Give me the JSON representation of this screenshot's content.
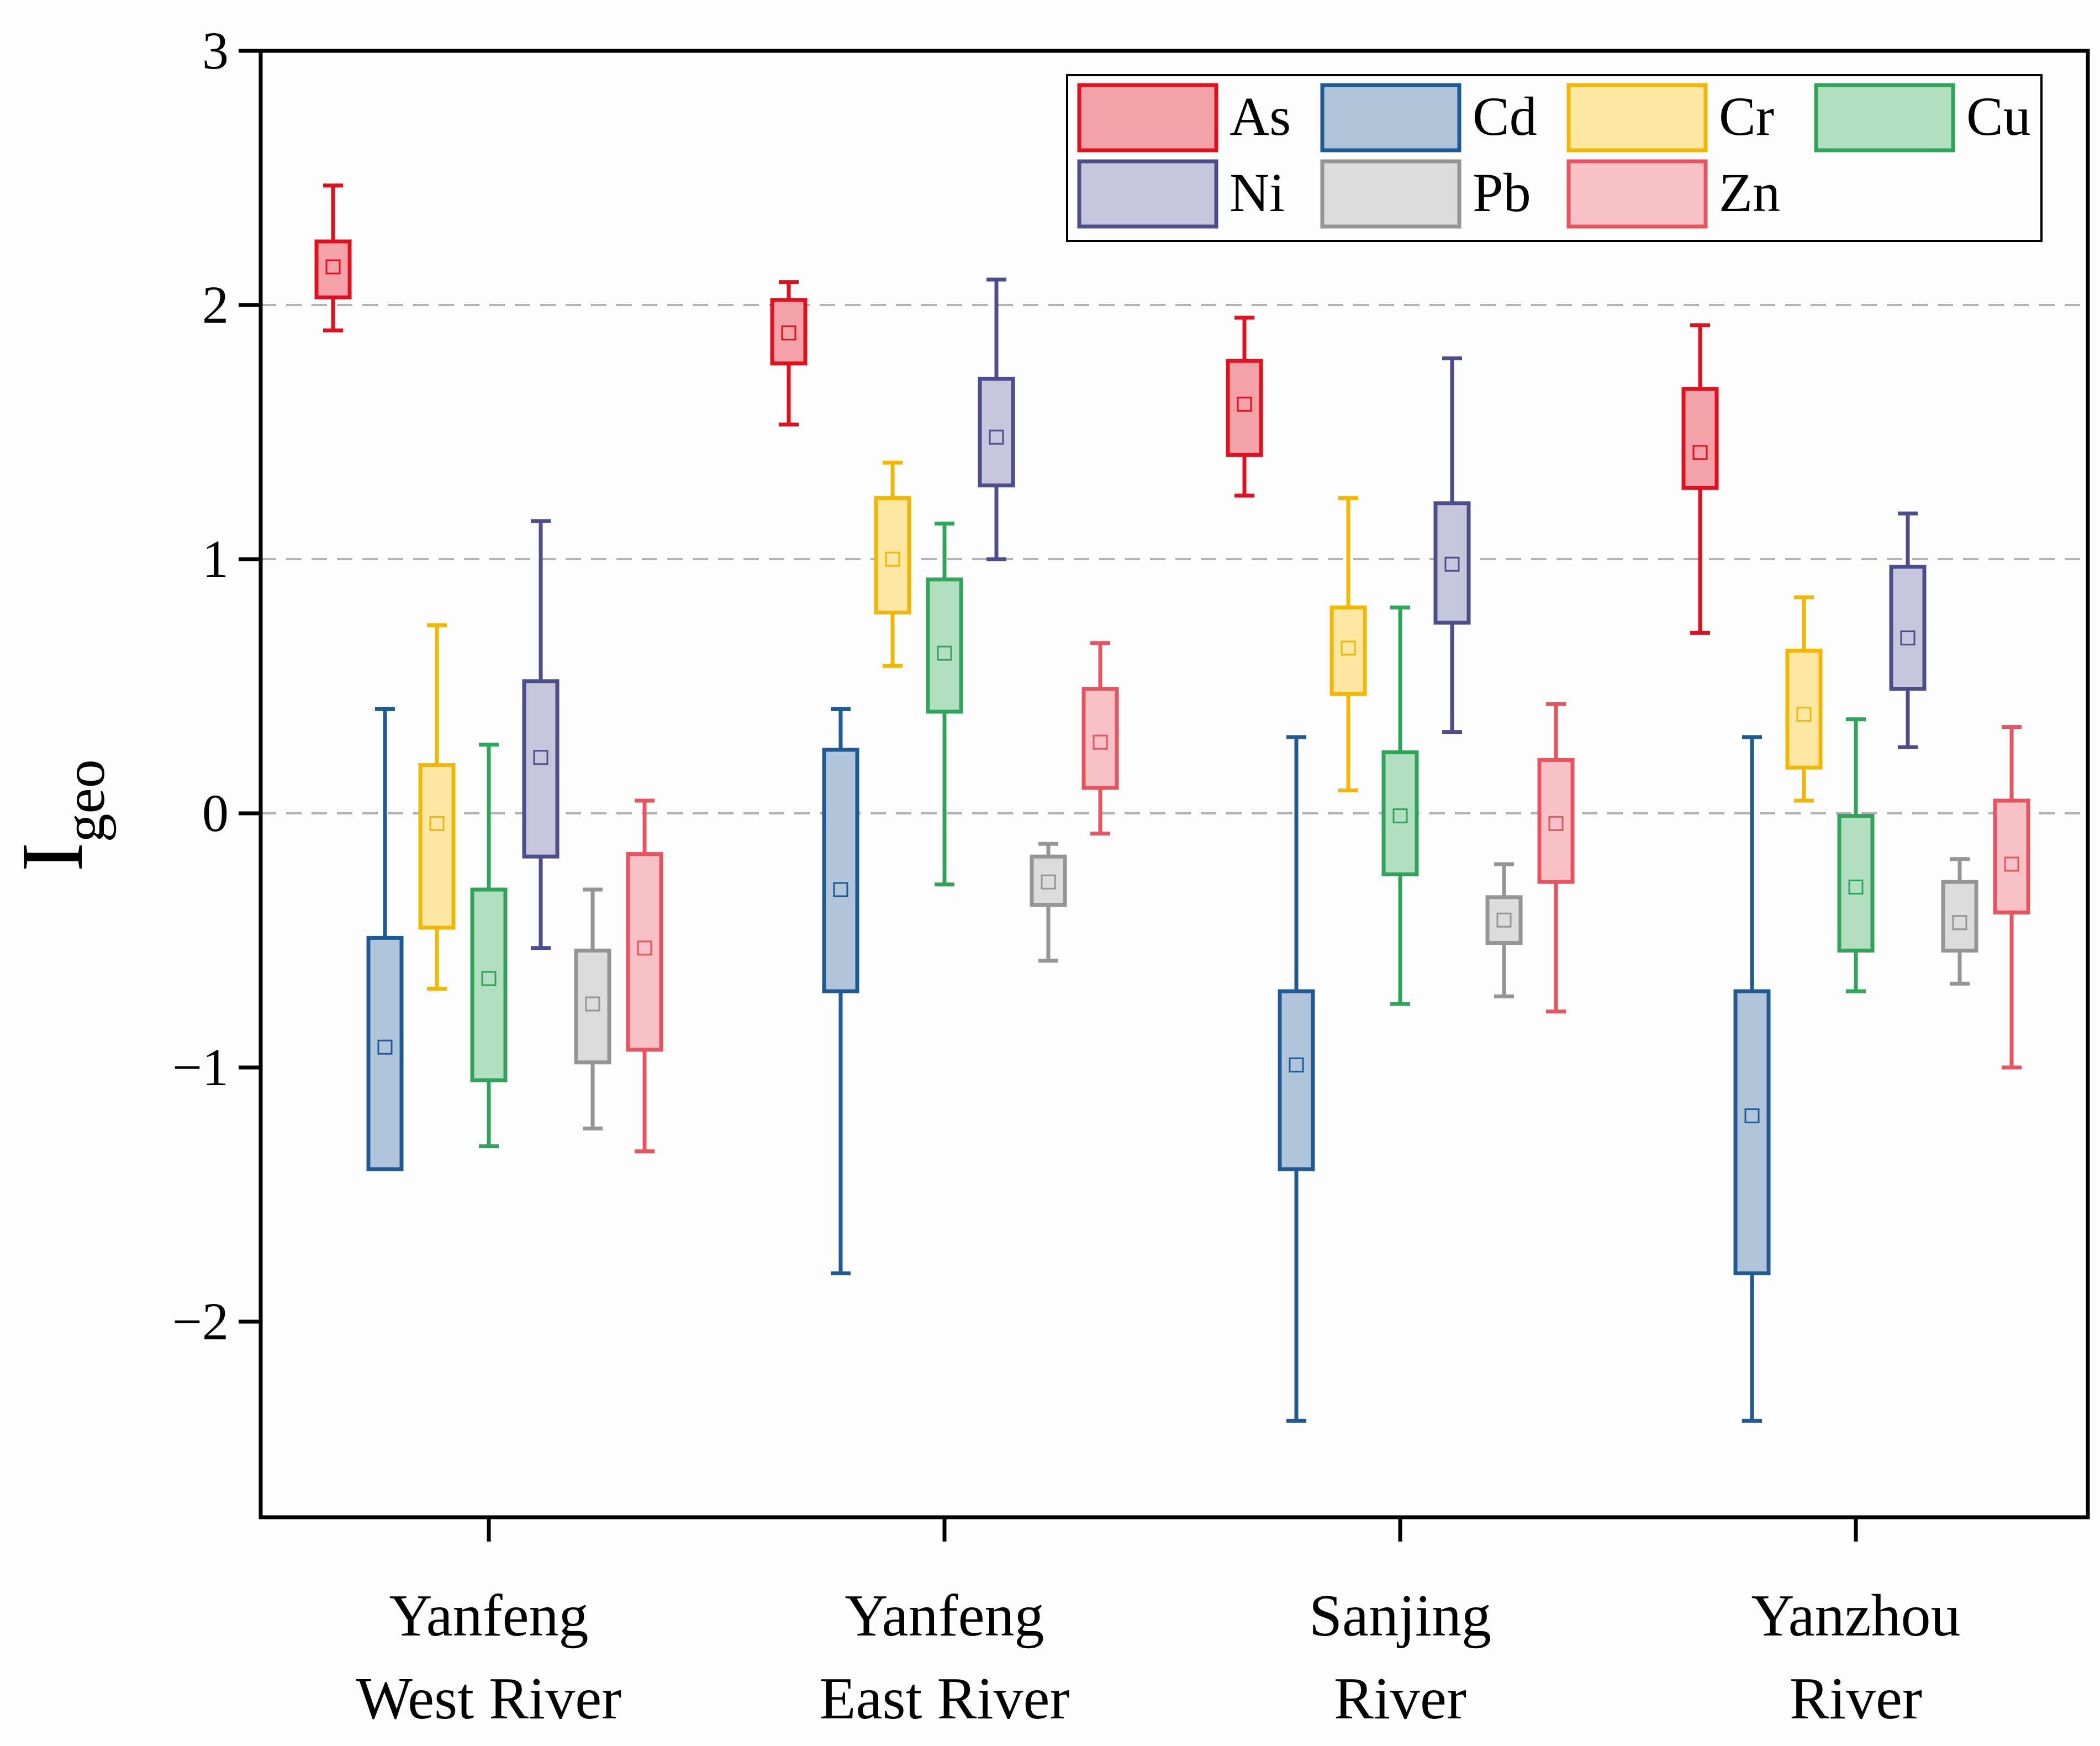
{
  "chart_data": {
    "type": "box",
    "ylabel": "I",
    "ylabel_sub": "geo",
    "ylim": [
      -2.75,
      3
    ],
    "yticks": [
      3,
      2,
      1,
      0,
      -1,
      -2
    ],
    "ytick_labels": [
      "3",
      "2",
      "1",
      "0",
      "−1",
      "−2"
    ],
    "gridlines": [
      2,
      1,
      0
    ],
    "categories": [
      {
        "lines": [
          "Yanfeng",
          "West River"
        ]
      },
      {
        "lines": [
          "Yanfeng",
          "East River"
        ]
      },
      {
        "lines": [
          "Sanjing",
          "River"
        ]
      },
      {
        "lines": [
          "Yanzhou",
          "River"
        ]
      }
    ],
    "legend_position": "top-right",
    "series": [
      {
        "name": "As",
        "stroke": "#e0101e",
        "fill": "#f3a3a7",
        "boxes": [
          {
            "min": 1.9,
            "q1": 2.03,
            "mean": 2.15,
            "q3": 2.25,
            "max": 2.47
          },
          {
            "min": 1.53,
            "q1": 1.77,
            "mean": 1.89,
            "q3": 2.02,
            "max": 2.09
          },
          {
            "min": 1.25,
            "q1": 1.41,
            "mean": 1.61,
            "q3": 1.78,
            "max": 1.95
          },
          {
            "min": 0.71,
            "q1": 1.28,
            "mean": 1.42,
            "q3": 1.67,
            "max": 1.92
          }
        ]
      },
      {
        "name": "Cd",
        "stroke": "#1f5a94",
        "fill": "#b0c4da",
        "boxes": [
          {
            "min": -1.4,
            "q1": -1.4,
            "mean": -0.92,
            "q3": -0.49,
            "max": 0.41
          },
          {
            "min": -1.81,
            "q1": -0.7,
            "mean": -0.3,
            "q3": 0.25,
            "max": 0.41
          },
          {
            "min": -2.39,
            "q1": -1.4,
            "mean": -0.99,
            "q3": -0.7,
            "max": 0.3
          },
          {
            "min": -2.39,
            "q1": -1.81,
            "mean": -1.19,
            "q3": -0.7,
            "max": 0.3
          }
        ]
      },
      {
        "name": "Cr",
        "stroke": "#f2b705",
        "fill": "#fde7a2",
        "boxes": [
          {
            "min": -0.69,
            "q1": -0.45,
            "mean": -0.04,
            "q3": 0.19,
            "max": 0.74
          },
          {
            "min": 0.58,
            "q1": 0.79,
            "mean": 1.0,
            "q3": 1.24,
            "max": 1.38
          },
          {
            "min": 0.09,
            "q1": 0.47,
            "mean": 0.65,
            "q3": 0.81,
            "max": 1.24
          },
          {
            "min": 0.05,
            "q1": 0.18,
            "mean": 0.39,
            "q3": 0.64,
            "max": 0.85
          }
        ]
      },
      {
        "name": "Cu",
        "stroke": "#2fa55a",
        "fill": "#b3dfc1",
        "boxes": [
          {
            "min": -1.31,
            "q1": -1.05,
            "mean": -0.65,
            "q3": -0.3,
            "max": 0.27
          },
          {
            "min": -0.28,
            "q1": 0.4,
            "mean": 0.63,
            "q3": 0.92,
            "max": 1.14
          },
          {
            "min": -0.75,
            "q1": -0.24,
            "mean": -0.01,
            "q3": 0.24,
            "max": 0.81
          },
          {
            "min": -0.7,
            "q1": -0.54,
            "mean": -0.29,
            "q3": -0.01,
            "max": 0.37
          }
        ]
      },
      {
        "name": "Ni",
        "stroke": "#4e4d8c",
        "fill": "#c6c6dc",
        "boxes": [
          {
            "min": -0.53,
            "q1": -0.17,
            "mean": 0.22,
            "q3": 0.52,
            "max": 1.15
          },
          {
            "min": 1.0,
            "q1": 1.29,
            "mean": 1.48,
            "q3": 1.71,
            "max": 2.1
          },
          {
            "min": 0.32,
            "q1": 0.75,
            "mean": 0.98,
            "q3": 1.22,
            "max": 1.79
          },
          {
            "min": 0.26,
            "q1": 0.49,
            "mean": 0.69,
            "q3": 0.97,
            "max": 1.18
          }
        ]
      },
      {
        "name": "Pb",
        "stroke": "#959595",
        "fill": "#dcdcdc",
        "boxes": [
          {
            "min": -1.24,
            "q1": -0.98,
            "mean": -0.75,
            "q3": -0.54,
            "max": -0.3
          },
          {
            "min": -0.58,
            "q1": -0.36,
            "mean": -0.27,
            "q3": -0.17,
            "max": -0.12
          },
          {
            "min": -0.72,
            "q1": -0.51,
            "mean": -0.42,
            "q3": -0.33,
            "max": -0.2
          },
          {
            "min": -0.67,
            "q1": -0.54,
            "mean": -0.43,
            "q3": -0.27,
            "max": -0.18
          }
        ]
      },
      {
        "name": "Zn",
        "stroke": "#e6555f",
        "fill": "#f7c1c5",
        "boxes": [
          {
            "min": -1.33,
            "q1": -0.93,
            "mean": -0.53,
            "q3": -0.16,
            "max": 0.05
          },
          {
            "min": -0.08,
            "q1": 0.1,
            "mean": 0.28,
            "q3": 0.49,
            "max": 0.67
          },
          {
            "min": -0.78,
            "q1": -0.27,
            "mean": -0.04,
            "q3": 0.21,
            "max": 0.43
          },
          {
            "min": -1.0,
            "q1": -0.39,
            "mean": -0.2,
            "q3": 0.05,
            "max": 0.34
          }
        ]
      }
    ]
  }
}
